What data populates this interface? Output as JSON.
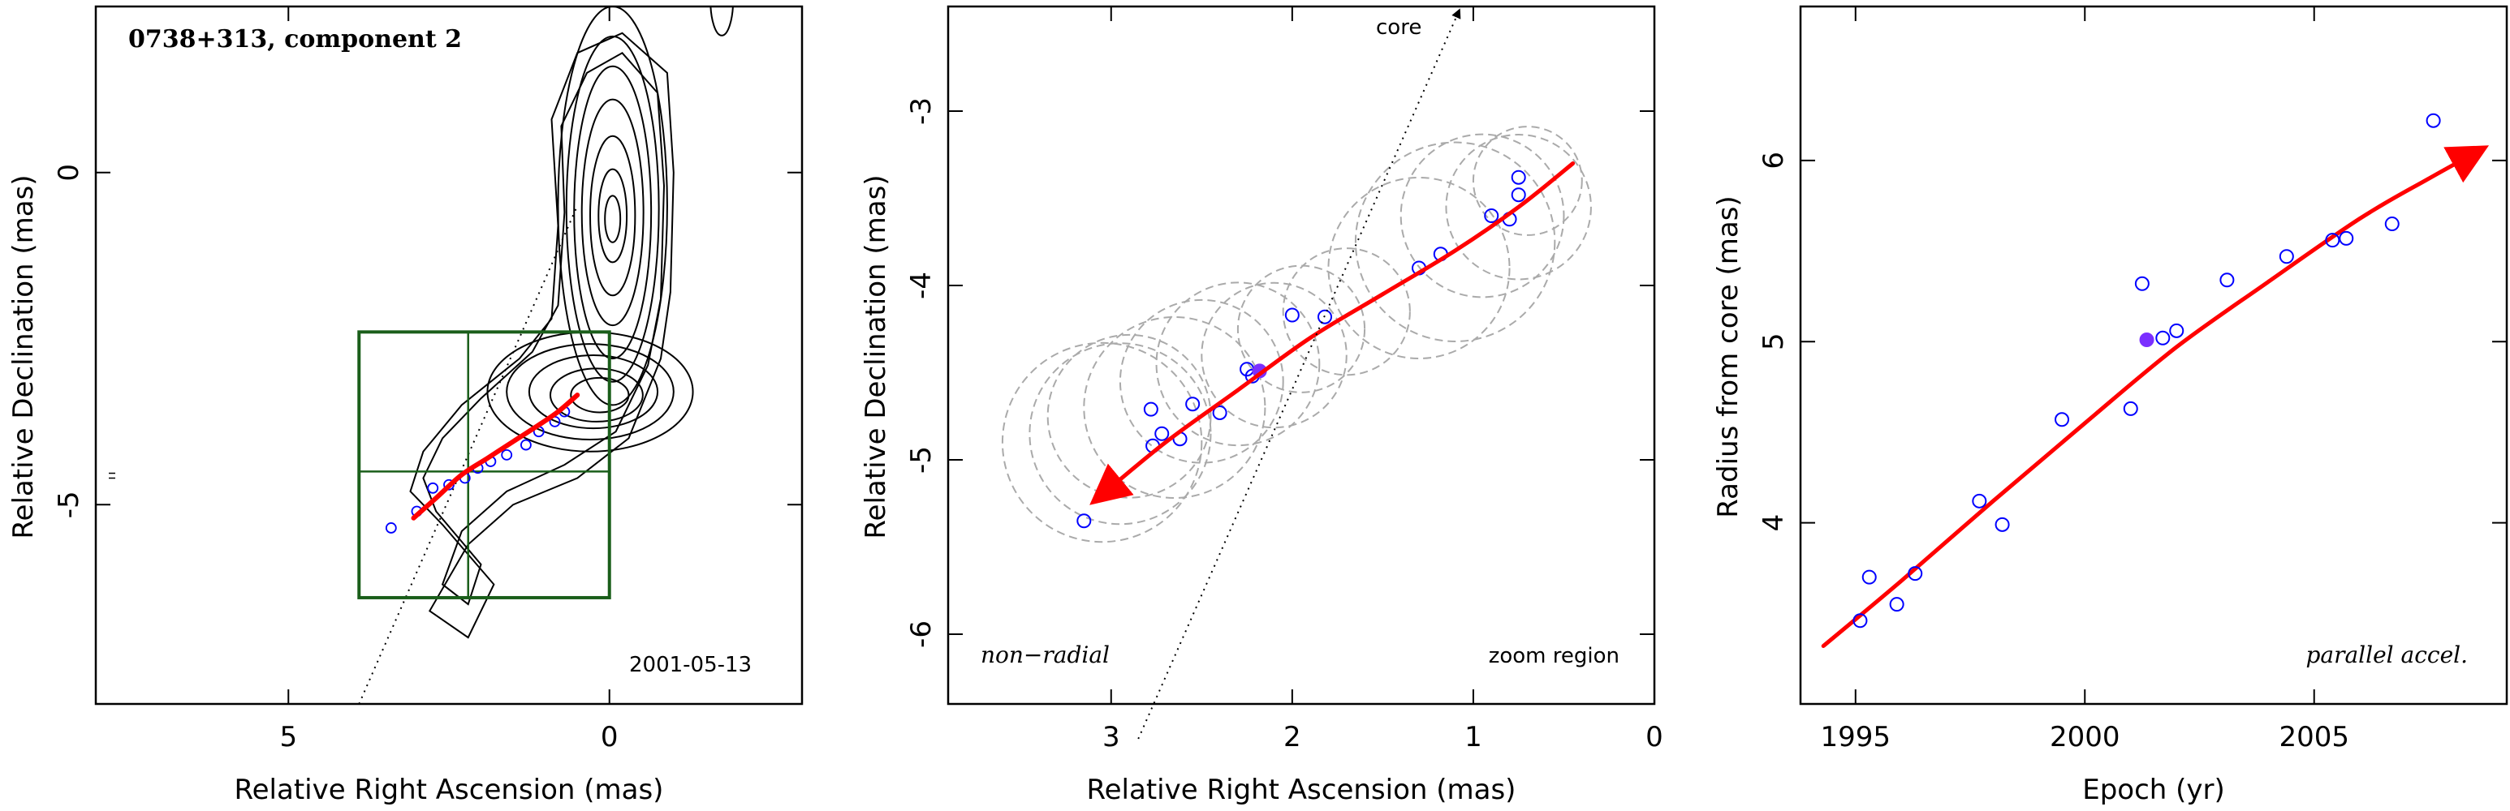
{
  "chart_data": [
    {
      "id": "p1",
      "type": "contour",
      "title": "0738+313, component 2",
      "epoch_label": "2001-05-13",
      "xlabel": "Relative Right Ascension (mas)",
      "ylabel": "Relative Declination (mas)",
      "xlim": [
        8,
        -3
      ],
      "ylim": [
        -8,
        2.5
      ],
      "xticks": [
        5,
        0
      ],
      "yticks": [
        -5,
        0
      ],
      "colors": {
        "contour": "#000000",
        "box": "#1a5e1a",
        "fit": "#ff0000",
        "points": "#0000ff"
      },
      "contours": [
        {
          "cx": -0.05,
          "cy": -0.5,
          "rx": 0.85,
          "ry": 3.0
        },
        {
          "cx": -0.05,
          "cy": -0.55,
          "rx": 0.72,
          "ry": 2.6
        },
        {
          "cx": -0.05,
          "cy": -0.6,
          "rx": 0.6,
          "ry": 2.2
        },
        {
          "cx": -0.05,
          "cy": -0.6,
          "rx": 0.48,
          "ry": 1.7
        },
        {
          "cx": -0.05,
          "cy": -0.65,
          "rx": 0.35,
          "ry": 1.2
        },
        {
          "cx": -0.05,
          "cy": -0.65,
          "rx": 0.22,
          "ry": 0.7
        },
        {
          "cx": -0.05,
          "cy": -0.7,
          "rx": 0.12,
          "ry": 0.35
        },
        {
          "cx": 0.3,
          "cy": -3.3,
          "rx": 1.6,
          "ry": 0.9
        },
        {
          "cx": 0.3,
          "cy": -3.3,
          "rx": 1.3,
          "ry": 0.72
        },
        {
          "cx": 0.25,
          "cy": -3.3,
          "rx": 1.0,
          "ry": 0.55
        },
        {
          "cx": 0.2,
          "cy": -3.35,
          "rx": 0.72,
          "ry": 0.4
        },
        {
          "cx": 0.15,
          "cy": -3.35,
          "rx": 0.45,
          "ry": 0.26
        }
      ],
      "outer_envelopes": [
        [
          [
            -0.9,
            1.5
          ],
          [
            -1.0,
            0.0
          ],
          [
            -0.95,
            -1.8
          ],
          [
            -0.8,
            -2.8
          ],
          [
            -0.3,
            -4.0
          ],
          [
            0.5,
            -4.6
          ],
          [
            1.5,
            -5.0
          ],
          [
            2.2,
            -5.6
          ],
          [
            2.8,
            -6.6
          ],
          [
            2.2,
            -7.0
          ],
          [
            1.8,
            -6.2
          ],
          [
            2.6,
            -5.3
          ],
          [
            3.1,
            -4.8
          ],
          [
            2.9,
            -4.2
          ],
          [
            2.3,
            -3.5
          ],
          [
            1.4,
            -2.8
          ],
          [
            0.9,
            -2.2
          ],
          [
            0.8,
            -0.8
          ],
          [
            0.9,
            0.8
          ],
          [
            0.5,
            1.8
          ],
          [
            -0.2,
            2.1
          ],
          [
            -0.9,
            1.5
          ]
        ],
        [
          [
            -0.75,
            1.2
          ],
          [
            -0.85,
            -0.2
          ],
          [
            -0.8,
            -1.9
          ],
          [
            -0.6,
            -2.9
          ],
          [
            -0.1,
            -3.9
          ],
          [
            0.7,
            -4.4
          ],
          [
            1.6,
            -4.8
          ],
          [
            2.3,
            -5.4
          ],
          [
            2.6,
            -6.2
          ],
          [
            2.2,
            -6.5
          ],
          [
            2.0,
            -5.9
          ],
          [
            2.7,
            -5.1
          ],
          [
            2.9,
            -4.6
          ],
          [
            2.6,
            -4.0
          ],
          [
            2.0,
            -3.4
          ],
          [
            1.2,
            -2.7
          ],
          [
            0.8,
            -2.0
          ],
          [
            0.7,
            -0.6
          ],
          [
            0.75,
            0.7
          ],
          [
            0.35,
            1.5
          ],
          [
            -0.2,
            1.8
          ],
          [
            -0.75,
            1.2
          ]
        ]
      ],
      "box": {
        "x": [
          3.9,
          0
        ],
        "y": [
          -6.4,
          -2.4
        ]
      },
      "box_grid": {
        "x": 2.2,
        "y": -4.5
      },
      "fit_curve": [
        [
          3.05,
          -5.2
        ],
        [
          2.7,
          -4.9
        ],
        [
          2.3,
          -4.55
        ],
        [
          1.9,
          -4.3
        ],
        [
          1.5,
          -4.05
        ],
        [
          1.1,
          -3.8
        ],
        [
          0.8,
          -3.6
        ],
        [
          0.5,
          -3.35
        ]
      ],
      "points": [
        [
          3.4,
          -5.35
        ],
        [
          3.0,
          -5.1
        ],
        [
          2.75,
          -4.75
        ],
        [
          2.5,
          -4.7
        ],
        [
          2.25,
          -4.6
        ],
        [
          2.05,
          -4.45
        ],
        [
          1.85,
          -4.35
        ],
        [
          1.6,
          -4.25
        ],
        [
          1.3,
          -4.1
        ],
        [
          1.1,
          -3.9
        ],
        [
          0.85,
          -3.75
        ],
        [
          0.7,
          -3.6
        ]
      ],
      "direction_line": [
        [
          3.9,
          -8.0
        ],
        [
          0.5,
          -0.5
        ]
      ],
      "tick_marker": {
        "x": 8.3,
        "y": -4.6
      }
    },
    {
      "id": "p2",
      "type": "scatter",
      "core_label": "core",
      "left_note": "non−radial",
      "right_note": "zoom region",
      "xlabel": "Relative Right Ascension (mas)",
      "ylabel": "Relative Declination (mas)",
      "xlim": [
        3.9,
        0
      ],
      "ylim": [
        -6.4,
        -2.4
      ],
      "xticks": [
        3,
        2,
        1,
        0
      ],
      "yticks": [
        -6,
        -5,
        -4,
        -3
      ],
      "colors": {
        "circles": "#aaaaaa",
        "fit": "#ff0000",
        "points": "#0000ff",
        "highlight": "#7b2fff"
      },
      "circles": [
        {
          "x": 3.05,
          "y": -4.9,
          "r": 0.55
        },
        {
          "x": 2.95,
          "y": -4.85,
          "r": 0.5
        },
        {
          "x": 2.9,
          "y": -4.75,
          "r": 0.45
        },
        {
          "x": 2.65,
          "y": -4.7,
          "r": 0.5
        },
        {
          "x": 2.5,
          "y": -4.55,
          "r": 0.45
        },
        {
          "x": 2.3,
          "y": -4.45,
          "r": 0.45
        },
        {
          "x": 2.1,
          "y": -4.4,
          "r": 0.4
        },
        {
          "x": 1.95,
          "y": -4.25,
          "r": 0.35
        },
        {
          "x": 1.7,
          "y": -4.15,
          "r": 0.35
        },
        {
          "x": 1.3,
          "y": -3.9,
          "r": 0.5
        },
        {
          "x": 1.1,
          "y": -3.75,
          "r": 0.55
        },
        {
          "x": 0.95,
          "y": -3.6,
          "r": 0.45
        },
        {
          "x": 0.75,
          "y": -3.55,
          "r": 0.4
        },
        {
          "x": 0.7,
          "y": -3.4,
          "r": 0.3
        }
      ],
      "fit_curve": [
        [
          3.05,
          -5.2
        ],
        [
          2.7,
          -4.9
        ],
        [
          2.3,
          -4.6
        ],
        [
          1.9,
          -4.3
        ],
        [
          1.5,
          -4.05
        ],
        [
          1.1,
          -3.8
        ],
        [
          0.75,
          -3.55
        ],
        [
          0.45,
          -3.3
        ]
      ],
      "points": [
        [
          3.15,
          -5.35
        ],
        [
          2.77,
          -4.92
        ],
        [
          2.72,
          -4.85
        ],
        [
          2.62,
          -4.88
        ],
        [
          2.55,
          -4.68
        ],
        [
          2.4,
          -4.73
        ],
        [
          2.25,
          -4.48
        ],
        [
          2.22,
          -4.52
        ],
        [
          2.0,
          -4.17
        ],
        [
          1.82,
          -4.18
        ],
        [
          1.3,
          -3.9
        ],
        [
          1.18,
          -3.82
        ],
        [
          0.9,
          -3.6
        ],
        [
          0.8,
          -3.62
        ],
        [
          0.75,
          -3.48
        ],
        [
          0.75,
          -3.38
        ],
        [
          2.78,
          -4.71
        ]
      ],
      "highlight": {
        "x": 2.18,
        "y": -4.49
      },
      "direction_line": [
        [
          2.85,
          -6.6
        ],
        [
          1.08,
          -2.4
        ]
      ]
    },
    {
      "id": "p3",
      "type": "scatter",
      "note": "parallel accel.",
      "xlabel": "Epoch (yr)",
      "ylabel": "Radius from core (mas)",
      "xlim": [
        1993.8,
        2009.2
      ],
      "ylim": [
        3.0,
        6.85
      ],
      "xticks": [
        1995,
        2000,
        2005
      ],
      "yticks": [
        4,
        5,
        6
      ],
      "colors": {
        "fit": "#ff0000",
        "points": "#0000ff",
        "highlight": "#7b2fff"
      },
      "fit_curve": [
        [
          1994.3,
          3.32
        ],
        [
          1996,
          3.68
        ],
        [
          1998,
          4.12
        ],
        [
          2000,
          4.55
        ],
        [
          2002,
          4.97
        ],
        [
          2004,
          5.33
        ],
        [
          2006,
          5.68
        ],
        [
          2007.5,
          5.9
        ],
        [
          2008.5,
          6.04
        ]
      ],
      "points": [
        [
          1995.1,
          3.46
        ],
        [
          1995.3,
          3.7
        ],
        [
          1995.9,
          3.55
        ],
        [
          1996.3,
          3.72
        ],
        [
          1997.7,
          4.12
        ],
        [
          1998.2,
          3.99
        ],
        [
          1999.5,
          4.57
        ],
        [
          2001.0,
          4.63
        ],
        [
          2001.25,
          5.32
        ],
        [
          2001.7,
          5.02
        ],
        [
          2002.0,
          5.06
        ],
        [
          2003.1,
          5.34
        ],
        [
          2004.4,
          5.47
        ],
        [
          2005.4,
          5.56
        ],
        [
          2005.7,
          5.57
        ],
        [
          2006.7,
          5.65
        ],
        [
          2007.6,
          6.22
        ]
      ],
      "highlight": {
        "x": 2001.35,
        "y": 5.01
      }
    }
  ]
}
